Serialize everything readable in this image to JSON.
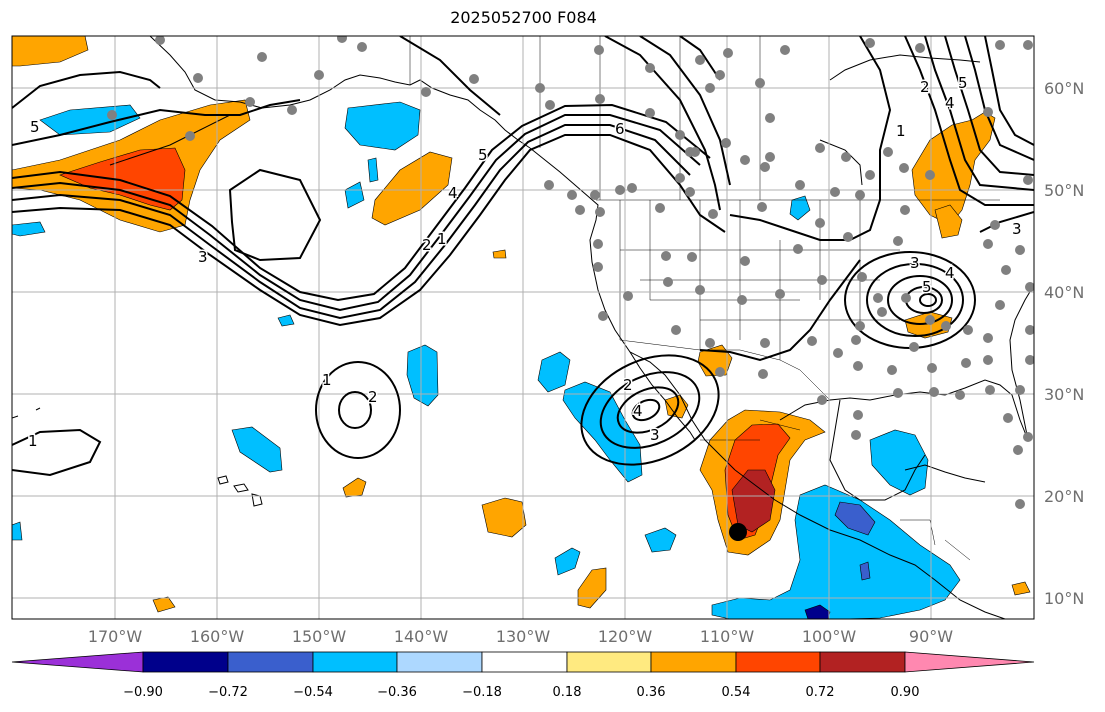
{
  "title": "2025052700 F084",
  "map": {
    "lon_range": [
      -180,
      -80
    ],
    "lat_range": [
      8,
      65
    ],
    "lon_ticks": [
      "170°W",
      "160°W",
      "150°W",
      "140°W",
      "130°W",
      "120°W",
      "110°W",
      "100°W",
      "90°W"
    ],
    "lat_ticks": [
      "10°N",
      "20°N",
      "30°N",
      "40°N",
      "50°N",
      "60°N"
    ],
    "grid": true,
    "contour_labels": [
      "5",
      "3",
      "5",
      "4",
      "2",
      "1",
      "6",
      "2",
      "3",
      "4",
      "1",
      "2",
      "3",
      "4",
      "5",
      "1",
      "2",
      "3",
      "4",
      "5",
      "1"
    ],
    "station_color": "#808080",
    "marker_color": "#000000"
  },
  "colorbar": {
    "ticks": [
      "−0.90",
      "−0.72",
      "−0.54",
      "−0.36",
      "−0.18",
      "0.18",
      "0.36",
      "0.54",
      "0.72",
      "0.90"
    ],
    "colors": [
      "#9b30d8",
      "#00008b",
      "#3a5fcd",
      "#00bfff",
      "#add8ff",
      "#ffffff",
      "#ffea80",
      "#ffa500",
      "#ff4500",
      "#b22222",
      "#ff88b0"
    ]
  }
}
